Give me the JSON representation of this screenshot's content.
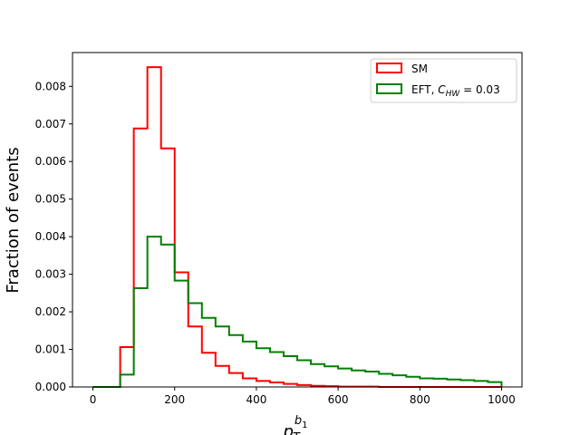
{
  "chart_data": {
    "type": "step-histogram",
    "xlabel_base": "p",
    "xlabel_sub": "T",
    "xlabel_sup_base": "b",
    "xlabel_sup_sub": "1",
    "ylabel": "Fraction of events",
    "xlim": [
      -50,
      1050
    ],
    "ylim": [
      0,
      0.0089
    ],
    "xticks": [
      0,
      200,
      400,
      600,
      800,
      1000
    ],
    "xtick_labels": [
      "0",
      "200",
      "400",
      "600",
      "800",
      "1000"
    ],
    "yticks": [
      0,
      0.001,
      0.002,
      0.003,
      0.004,
      0.005,
      0.006,
      0.007,
      0.008
    ],
    "ytick_labels": [
      "0.000",
      "0.001",
      "0.002",
      "0.003",
      "0.004",
      "0.005",
      "0.006",
      "0.007",
      "0.008"
    ],
    "grid": false,
    "legend_position": "top-right",
    "bin_edges": [
      0,
      33.3,
      66.7,
      100,
      133.3,
      166.7,
      200,
      233.3,
      266.7,
      300,
      333.3,
      366.7,
      400,
      433.3,
      466.7,
      500,
      533.3,
      566.7,
      600,
      633.3,
      666.7,
      700,
      733.3,
      766.7,
      800,
      833.3,
      866.7,
      900,
      933.3,
      966.7,
      1000
    ],
    "series": [
      {
        "name": "SM",
        "color": "#ff0000",
        "values": [
          0.0,
          0.0,
          0.00106,
          0.00688,
          0.00851,
          0.00635,
          0.00305,
          0.00161,
          0.00091,
          0.00056,
          0.00037,
          0.00023,
          0.00016,
          0.00012,
          8e-05,
          5e-05,
          3e-05,
          2e-05,
          1e-05,
          1e-05,
          1e-05,
          0.0,
          0.0,
          0.0,
          0.0,
          0.0,
          0.0,
          0.0,
          0.0,
          0.0
        ]
      },
      {
        "name_text": "EFT, ",
        "name_symbol": "C",
        "name_symbol_sub": "HW",
        "name_value": " = 0.03",
        "color": "#008000",
        "values": [
          0.0,
          0.0,
          0.00033,
          0.00263,
          0.004,
          0.00379,
          0.00283,
          0.00223,
          0.00184,
          0.00161,
          0.00138,
          0.00121,
          0.00103,
          0.00093,
          0.00082,
          0.00071,
          0.00061,
          0.00055,
          0.00049,
          0.00044,
          0.00041,
          0.00035,
          0.00031,
          0.00027,
          0.00023,
          0.00022,
          0.0002,
          0.00018,
          0.00016,
          0.00013
        ]
      }
    ]
  }
}
